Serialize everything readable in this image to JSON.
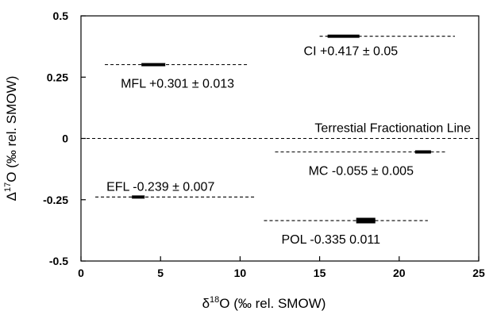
{
  "chart_data": {
    "type": "scatter",
    "title": "",
    "xlabel": "δ18O (‰ rel. SMOW)",
    "ylabel": "Δ17O (‰ rel. SMOW)",
    "axis_labels": {
      "x": {
        "prefix": "δ",
        "sup": "18",
        "main": "O (‰ rel. SMOW)"
      },
      "y": {
        "prefix": "Δ",
        "sup": "17",
        "main": "O (‰ rel. SMOW)"
      }
    },
    "xlim": [
      0,
      25
    ],
    "ylim": [
      -0.5,
      0.5
    ],
    "xticks": [
      0,
      5,
      10,
      15,
      20,
      25
    ],
    "xtick_labels": [
      "0",
      "5",
      "10",
      "15",
      "20",
      "25"
    ],
    "yticks": [
      0.5,
      0.25,
      0,
      -0.25,
      -0.5
    ],
    "ytick_labels": [
      "0.5",
      "0.25",
      "0",
      "-0.25",
      "-0.5"
    ],
    "reference_line": {
      "y": 0,
      "x_range": [
        0,
        25
      ],
      "label": "Terrestial Fractionation Line"
    },
    "series": [
      {
        "name": "CI",
        "y": 0.417,
        "line_x": [
          15.0,
          23.5
        ],
        "bar_x": [
          15.5,
          17.5
        ],
        "label": "CI  +0.417 ± 0.05"
      },
      {
        "name": "MFL",
        "y": 0.301,
        "line_x": [
          1.5,
          10.5
        ],
        "bar_x": [
          3.8,
          5.3
        ],
        "label": "MFL +0.301 ± 0.013"
      },
      {
        "name": "MC",
        "y": -0.055,
        "line_x": [
          12.2,
          23.0
        ],
        "bar_x": [
          21.0,
          22.0
        ],
        "label": "MC -0.055 ± 0.005"
      },
      {
        "name": "EFL",
        "y": -0.239,
        "line_x": [
          0.9,
          11.0
        ],
        "bar_x": [
          3.2,
          4.0
        ],
        "label": "EFL -0.239 ± 0.007"
      },
      {
        "name": "POL",
        "y": -0.335,
        "line_x": [
          11.5,
          21.8
        ],
        "bar_x": [
          17.3,
          18.5
        ],
        "label": "POL -0.335    0.011"
      }
    ],
    "grid": false,
    "legend": "none"
  }
}
